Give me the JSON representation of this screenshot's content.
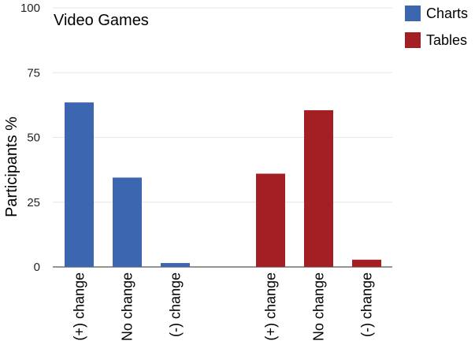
{
  "chart_data": {
    "type": "bar",
    "title": "Video Games",
    "ylabel": "Participants %",
    "ylim": [
      0,
      100
    ],
    "yticks": [
      0,
      25,
      50,
      75,
      100
    ],
    "grid": true,
    "legend_position": "top-right",
    "groups": [
      {
        "name": "Charts",
        "color": "#3d66b1",
        "categories": [
          "(+) change",
          "No change",
          "(-) change"
        ],
        "values": [
          63.5,
          34.5,
          1.5
        ]
      },
      {
        "name": "Tables",
        "color": "#a31f23",
        "categories": [
          "(+) change",
          "No change",
          "(-) change"
        ],
        "values": [
          36,
          60.5,
          2.8
        ]
      }
    ]
  }
}
